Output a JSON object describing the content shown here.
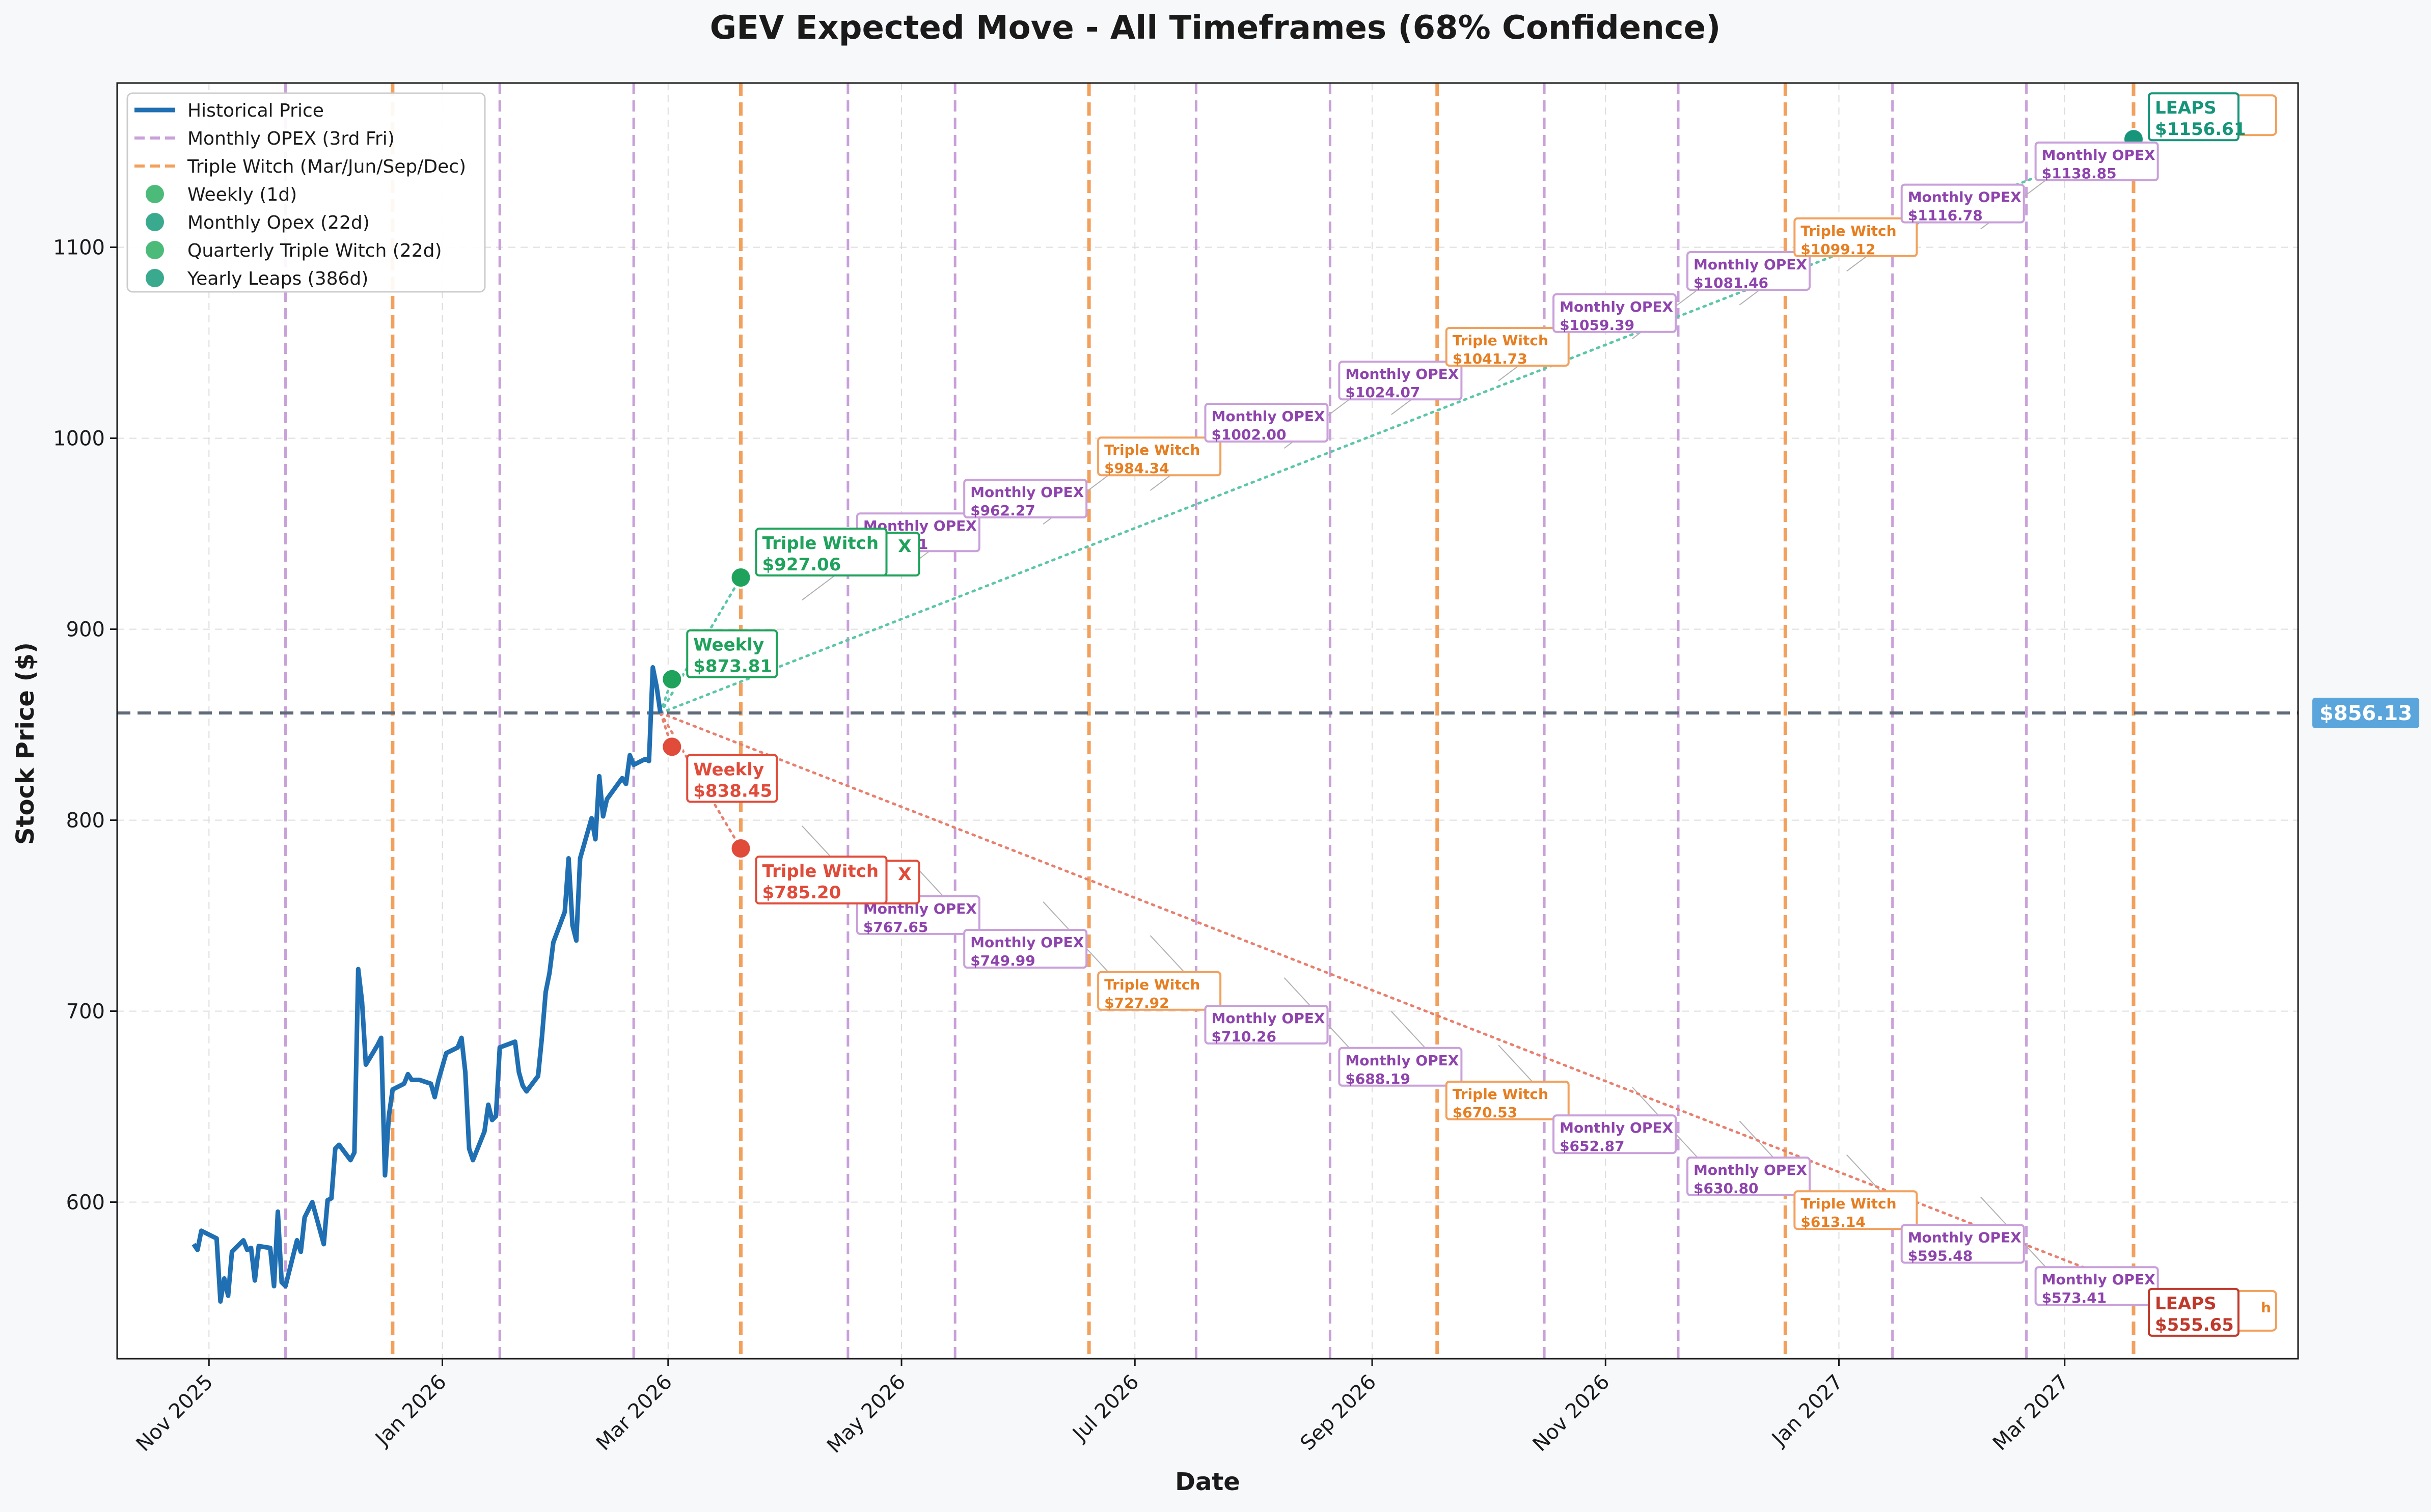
{
  "chart_data": {
    "type": "line",
    "title": "GEV Expected Move - All Timeframes (68% Confidence)",
    "xlabel": "Date",
    "ylabel": "Stock Price ($)",
    "xlim": [
      "2025-10-08",
      "2027-05-01"
    ],
    "ylim": [
      518,
      1186
    ],
    "grid": true,
    "legend_position": "top-left",
    "x_ticks": [
      {
        "date": "2025-11-01",
        "label": "Nov 2025"
      },
      {
        "date": "2026-01-01",
        "label": "Jan 2026"
      },
      {
        "date": "2026-03-01",
        "label": "Mar 2026"
      },
      {
        "date": "2026-05-01",
        "label": "May 2026"
      },
      {
        "date": "2026-07-01",
        "label": "Jul 2026"
      },
      {
        "date": "2026-09-01",
        "label": "Sep 2026"
      },
      {
        "date": "2026-11-01",
        "label": "Nov 2026"
      },
      {
        "date": "2027-01-01",
        "label": "Jan 2027"
      },
      {
        "date": "2027-03-01",
        "label": "Mar 2027"
      }
    ],
    "y_ticks": [
      600,
      700,
      800,
      900,
      1000,
      1100
    ],
    "current_price": 856.13,
    "current_price_label": "$856.13",
    "legend": [
      {
        "label": "Historical Price",
        "kind": "line",
        "color": "#1f6fb2"
      },
      {
        "label": "Monthly OPEX (3rd Fri)",
        "kind": "dashed",
        "color": "#c9a0d9"
      },
      {
        "label": "Triple Witch (Mar/Jun/Sep/Dec)",
        "kind": "dashed",
        "color": "#f2a15d"
      },
      {
        "label": "Weekly (1d)",
        "kind": "dot",
        "color": "#4cbb7a"
      },
      {
        "label": "Monthly Opex (22d)",
        "kind": "dot",
        "color": "#3aaa8f"
      },
      {
        "label": "Quarterly Triple Witch (22d)",
        "kind": "dot",
        "color": "#4cbb7a"
      },
      {
        "label": "Yearly Leaps (386d)",
        "kind": "dot",
        "color": "#3aaa8f"
      }
    ],
    "historical": {
      "name": "Historical Price",
      "color": "#1f6fb2",
      "points": [
        [
          "2025-10-28",
          578
        ],
        [
          "2025-10-29",
          575
        ],
        [
          "2025-10-30",
          585
        ],
        [
          "2025-11-03",
          581
        ],
        [
          "2025-11-04",
          548
        ],
        [
          "2025-11-05",
          560
        ],
        [
          "2025-11-06",
          551
        ],
        [
          "2025-11-07",
          574
        ],
        [
          "2025-11-10",
          580
        ],
        [
          "2025-11-11",
          575
        ],
        [
          "2025-11-12",
          576
        ],
        [
          "2025-11-13",
          559
        ],
        [
          "2025-11-14",
          577
        ],
        [
          "2025-11-17",
          576
        ],
        [
          "2025-11-18",
          556
        ],
        [
          "2025-11-19",
          595
        ],
        [
          "2025-11-20",
          558
        ],
        [
          "2025-11-21",
          556
        ],
        [
          "2025-11-24",
          580
        ],
        [
          "2025-11-25",
          574
        ],
        [
          "2025-11-26",
          592
        ],
        [
          "2025-11-28",
          600
        ],
        [
          "2025-12-01",
          578
        ],
        [
          "2025-12-02",
          601
        ],
        [
          "2025-12-03",
          602
        ],
        [
          "2025-12-04",
          628
        ],
        [
          "2025-12-05",
          630
        ],
        [
          "2025-12-08",
          622
        ],
        [
          "2025-12-09",
          626
        ],
        [
          "2025-12-10",
          722
        ],
        [
          "2025-12-11",
          705
        ],
        [
          "2025-12-12",
          672
        ],
        [
          "2025-12-15",
          682
        ],
        [
          "2025-12-16",
          686
        ],
        [
          "2025-12-17",
          614
        ],
        [
          "2025-12-18",
          645
        ],
        [
          "2025-12-19",
          659
        ],
        [
          "2025-12-22",
          662
        ],
        [
          "2025-12-23",
          667
        ],
        [
          "2025-12-24",
          664
        ],
        [
          "2025-12-26",
          664
        ],
        [
          "2025-12-29",
          662
        ],
        [
          "2025-12-30",
          655
        ],
        [
          "2025-12-31",
          664
        ],
        [
          "2026-01-02",
          678
        ],
        [
          "2026-01-05",
          681
        ],
        [
          "2026-01-06",
          686
        ],
        [
          "2026-01-07",
          668
        ],
        [
          "2026-01-08",
          628
        ],
        [
          "2026-01-09",
          622
        ],
        [
          "2026-01-12",
          637
        ],
        [
          "2026-01-13",
          651
        ],
        [
          "2026-01-14",
          643
        ],
        [
          "2026-01-15",
          645
        ],
        [
          "2026-01-16",
          681
        ],
        [
          "2026-01-20",
          684
        ],
        [
          "2026-01-21",
          668
        ],
        [
          "2026-01-22",
          661
        ],
        [
          "2026-01-23",
          658
        ],
        [
          "2026-01-26",
          666
        ],
        [
          "2026-01-27",
          686
        ],
        [
          "2026-01-28",
          710
        ],
        [
          "2026-01-29",
          720
        ],
        [
          "2026-01-30",
          736
        ],
        [
          "2026-02-02",
          752
        ],
        [
          "2026-02-03",
          780
        ],
        [
          "2026-02-04",
          745
        ],
        [
          "2026-02-05",
          737
        ],
        [
          "2026-02-06",
          780
        ],
        [
          "2026-02-09",
          801
        ],
        [
          "2026-02-10",
          790
        ],
        [
          "2026-02-11",
          823
        ],
        [
          "2026-02-12",
          802
        ],
        [
          "2026-02-13",
          811
        ],
        [
          "2026-02-17",
          822
        ],
        [
          "2026-02-18",
          819
        ],
        [
          "2026-02-19",
          834
        ],
        [
          "2026-02-20",
          829
        ],
        [
          "2026-02-23",
          832
        ],
        [
          "2026-02-24",
          831
        ],
        [
          "2026-02-25",
          880
        ],
        [
          "2026-02-26",
          870
        ],
        [
          "2026-02-27",
          856
        ]
      ]
    },
    "monthly_opex_dates": [
      "2025-11-21",
      "2026-01-16",
      "2026-02-20",
      "2026-04-17",
      "2026-05-15",
      "2026-07-17",
      "2026-08-21",
      "2026-10-16",
      "2026-11-20",
      "2027-01-15",
      "2027-02-19"
    ],
    "triple_witch_dates": [
      "2025-12-19",
      "2026-03-20",
      "2026-06-19",
      "2026-09-18",
      "2026-12-18",
      "2027-03-19"
    ],
    "projection_origin": {
      "date": "2026-02-27",
      "value": 856.13
    },
    "projections": [
      {
        "label": "Weekly",
        "date": "2026-03-02",
        "upper": 873.81,
        "lower": 838.45,
        "upper_text": "$873.81",
        "lower_text": "$838.45",
        "upper_color": "#1fa35c",
        "lower_color": "#e04b3a"
      },
      {
        "label": "Triple Witch",
        "date": "2026-03-20",
        "upper": 927.06,
        "lower": 785.2,
        "upper_text": "$927.06",
        "lower_text": "$785.20",
        "upper_color": "#1fa35c",
        "lower_color": "#e04b3a",
        "hidden_label": "X"
      },
      {
        "label": "LEAPS",
        "date": "2027-03-19",
        "upper": 1156.61,
        "lower": 555.65,
        "upper_text": "$1156.61",
        "lower_text": "$555.65",
        "upper_color": "#17957a",
        "lower_color": "#c0392b"
      }
    ],
    "expiry_labels": [
      {
        "kind": "Monthly OPEX",
        "date": "2026-04-17",
        "upper": 944.61,
        "lower": 767.65,
        "upper_text": "$944.61",
        "lower_text": "$767.65"
      },
      {
        "kind": "Monthly OPEX",
        "date": "2026-05-15",
        "upper": 962.27,
        "lower": 749.99,
        "upper_text": "$962.27",
        "lower_text": "$749.99"
      },
      {
        "kind": "Triple Witch",
        "date": "2026-06-19",
        "upper": 984.34,
        "lower": 727.92,
        "upper_text": "$984.34",
        "lower_text": "$727.92"
      },
      {
        "kind": "Monthly OPEX",
        "date": "2026-07-17",
        "upper": 1002.0,
        "lower": 710.26,
        "upper_text": "$1002.00",
        "lower_text": "$710.26"
      },
      {
        "kind": "Monthly OPEX",
        "date": "2026-08-21",
        "upper": 1024.07,
        "lower": 688.19,
        "upper_text": "$1024.07",
        "lower_text": "$688.19"
      },
      {
        "kind": "Triple Witch",
        "date": "2026-09-18",
        "upper": 1041.73,
        "lower": 670.53,
        "upper_text": "$1041.73",
        "lower_text": "$670.53"
      },
      {
        "kind": "Monthly OPEX",
        "date": "2026-10-16",
        "upper": 1059.39,
        "lower": 652.87,
        "upper_text": "$1059.39",
        "lower_text": "$652.87"
      },
      {
        "kind": "Monthly OPEX",
        "date": "2026-11-20",
        "upper": 1081.46,
        "lower": 630.8,
        "upper_text": "$1081.46",
        "lower_text": "$630.80"
      },
      {
        "kind": "Triple Witch",
        "date": "2026-12-18",
        "upper": 1099.12,
        "lower": 613.14,
        "upper_text": "$1099.12",
        "lower_text": "$613.14"
      },
      {
        "kind": "Monthly OPEX",
        "date": "2027-01-15",
        "upper": 1116.78,
        "lower": 595.48,
        "upper_text": "$1116.78",
        "lower_text": "$595.48"
      },
      {
        "kind": "Monthly OPEX",
        "date": "2027-02-19",
        "upper": 1138.85,
        "lower": 573.41,
        "upper_text": "$1138.85",
        "lower_text": "$573.41"
      }
    ],
    "colors": {
      "opex_line": "#c9a0d9",
      "triple_line": "#f2a15d",
      "opex_text": "#8e44ad",
      "triple_text": "#e67e22",
      "upper_dotted": "#5cc6a8",
      "lower_dotted": "#e8806f",
      "current_line": "#5f6b78",
      "current_badge": "#5aa6dc"
    }
  }
}
